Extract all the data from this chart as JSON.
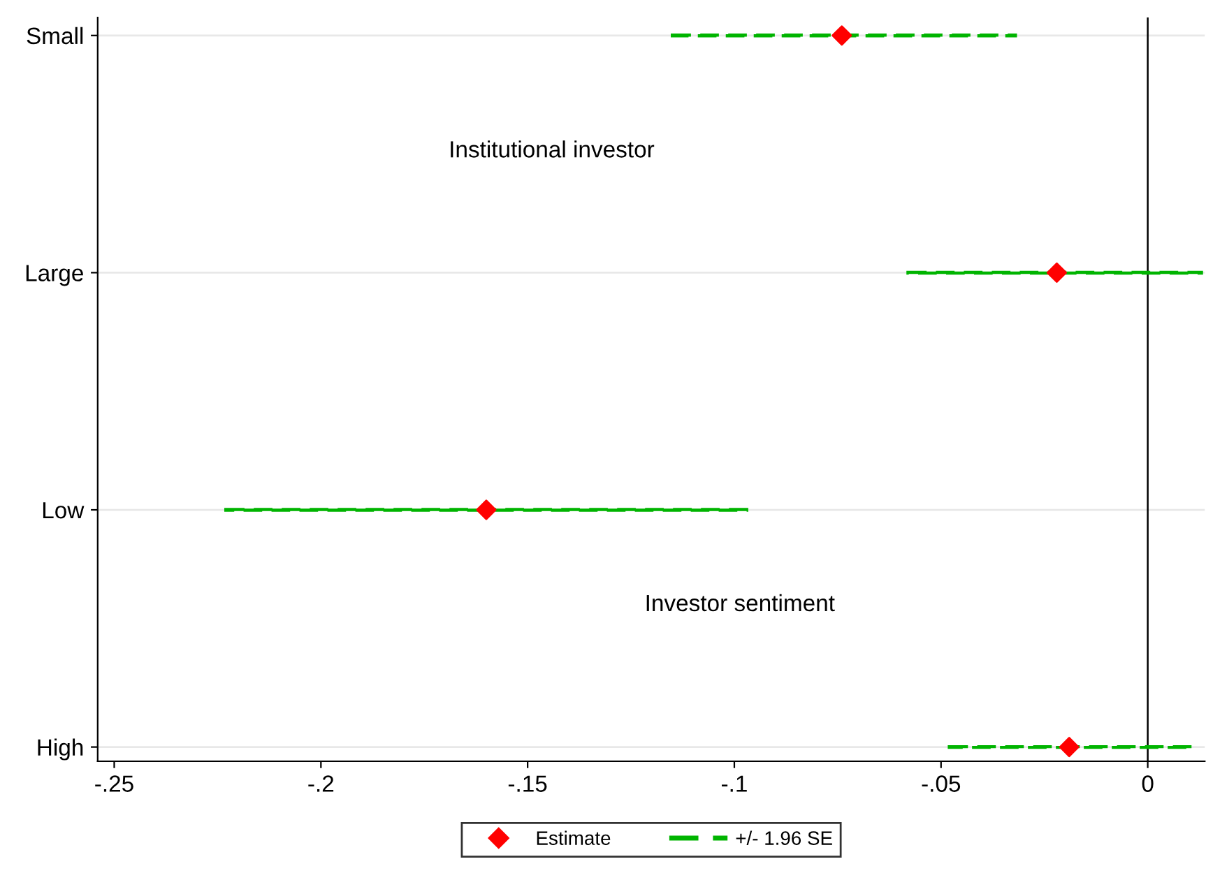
{
  "chart_data": {
    "type": "scatter",
    "orientation": "horizontal",
    "categories": [
      "Small",
      "Large",
      "Low",
      "High"
    ],
    "series": [
      {
        "name": "+/- 1.96 SE",
        "type": "bar",
        "color": "#00b400",
        "line_style": "dashed",
        "base": [
          -0.115,
          -0.058,
          -0.223,
          -0.048
        ],
        "values": [
          0.083,
          0.071,
          0.126,
          0.059
        ]
      },
      {
        "name": "Estimate",
        "color": "#ff0000",
        "marker": "diamond",
        "values": [
          -0.074,
          -0.022,
          -0.16,
          -0.019
        ]
      }
    ],
    "xlim": [
      -0.254,
      0.0138
    ],
    "xticks": [
      {
        "value": -0.25,
        "label": "-.25"
      },
      {
        "value": -0.2,
        "label": "-.2"
      },
      {
        "value": -0.15,
        "label": "-.15"
      },
      {
        "value": -0.1,
        "label": "-.1"
      },
      {
        "value": -0.05,
        "label": "-.05"
      },
      0
    ],
    "ref_lines": [
      {
        "axis": "x",
        "value": 0,
        "color": "#000000"
      }
    ],
    "annotations": [
      "Institutional investor",
      "Investor sentiment"
    ],
    "grid": "y",
    "legend": "bottom"
  }
}
